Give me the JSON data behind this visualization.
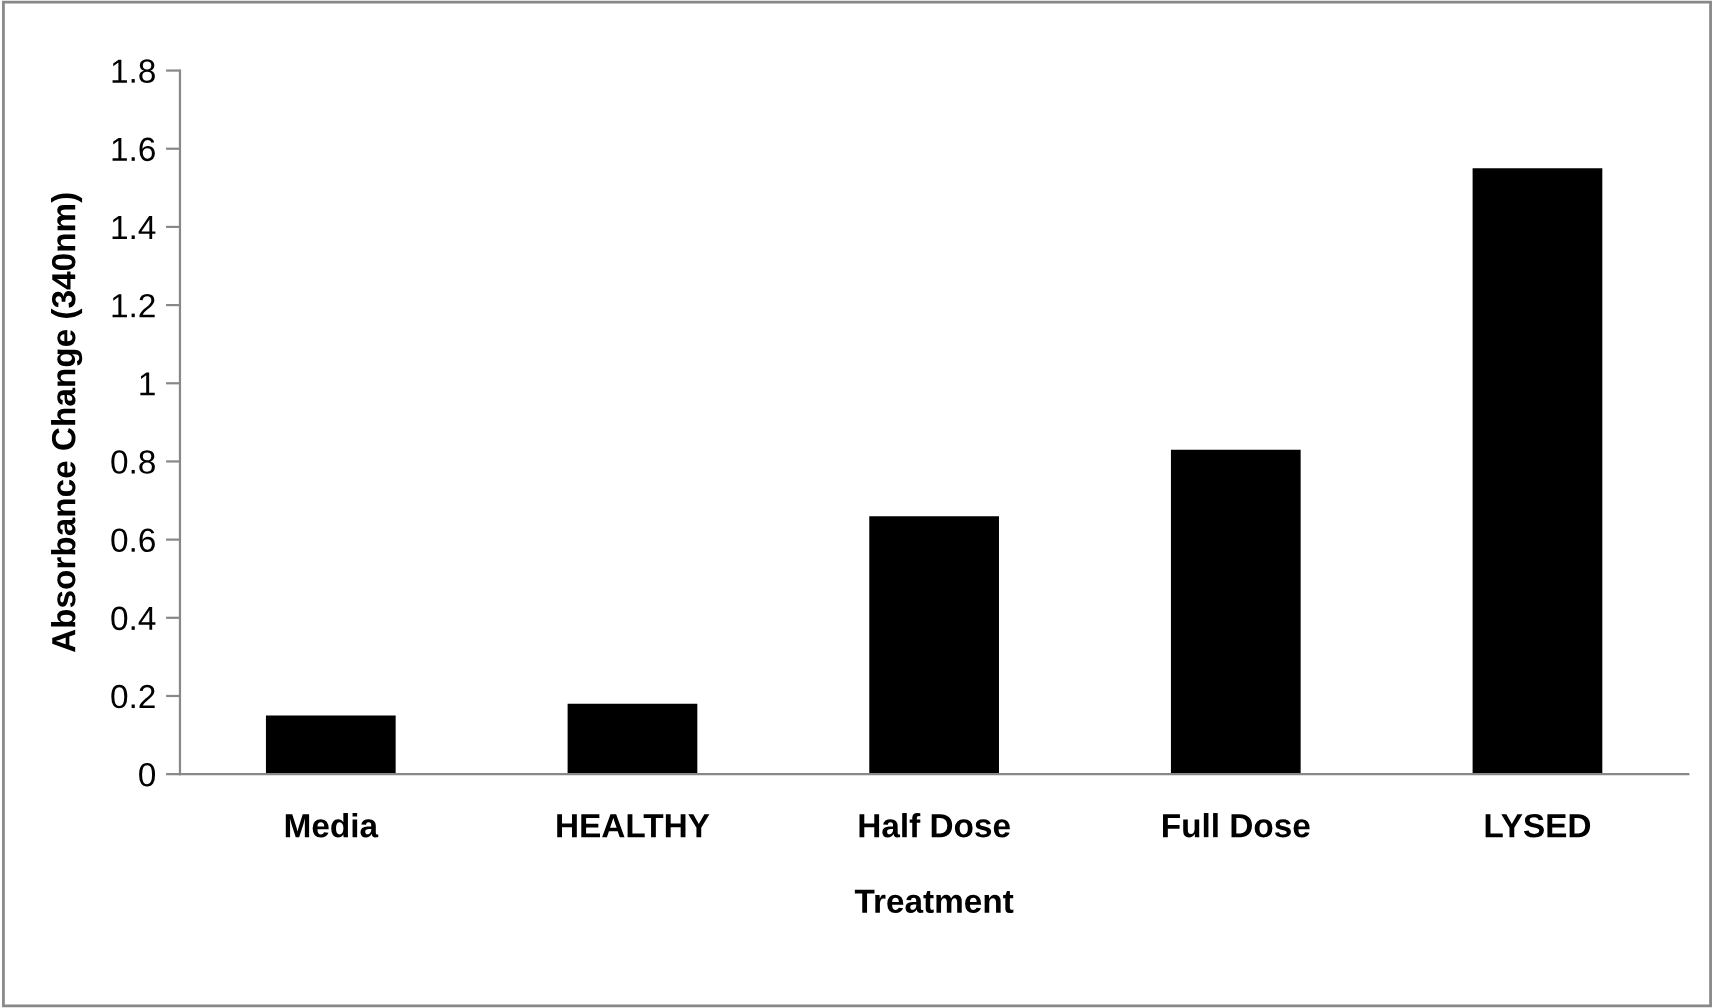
{
  "chart_data": {
    "type": "bar",
    "xlabel": "Treatment",
    "ylabel": "Absorbance Change (340nm)",
    "categories": [
      "Media",
      "HEALTHY",
      "Half Dose",
      "Full Dose",
      "LYSED"
    ],
    "values": [
      0.15,
      0.18,
      0.66,
      0.83,
      1.55
    ],
    "color": "#000000",
    "ylim": [
      0,
      1.8
    ],
    "yticks": [
      0,
      0.2,
      0.4,
      0.6,
      0.8,
      1,
      1.2,
      1.4,
      1.6,
      1.8
    ],
    "grid": false,
    "legend": false
  }
}
